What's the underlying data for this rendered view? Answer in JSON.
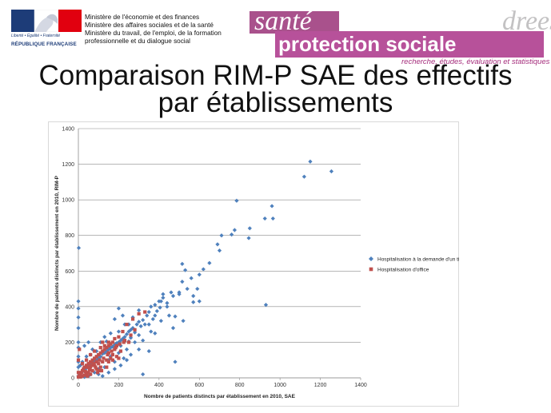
{
  "header": {
    "ministry_logo": {
      "motto": "Liberté • Égalité • Fraternité",
      "name": "RÉPUBLIQUE FRANÇAISE",
      "colors": {
        "blue": "#1d3c78",
        "red": "#e1000f"
      }
    },
    "ministry_lines": [
      "Ministère de l'économie et des finances",
      "Ministère des affaires sociales et de la santé",
      "Ministère du travail, de l'emploi, de la formation",
      "professionnelle et du dialogue social"
    ],
    "brand": {
      "sante": "santé",
      "protection": "protection sociale",
      "drees": "drees",
      "subtitle": "recherche, études, évaluation et statistiques",
      "color": "#b7519a"
    }
  },
  "title": {
    "line1": "Comparaison RIM-P SAE des effectifs",
    "line2": "par établissements"
  },
  "chart_data": {
    "type": "scatter",
    "xlabel": "Nombre de patients distincts par établissement en 2010, SAE",
    "ylabel": "Nombre de patients distincts par établissement en 2010, RIM-P",
    "xlim": [
      0,
      1400
    ],
    "ylim": [
      0,
      1400
    ],
    "xticks": [
      0,
      200,
      400,
      600,
      800,
      1000,
      1200,
      1400
    ],
    "yticks": [
      0,
      200,
      400,
      600,
      800,
      1000,
      1200,
      1400
    ],
    "grid": "horizontal",
    "legend_position": "right",
    "series": [
      {
        "name": "Hospitalisation à la demande d'un tiers",
        "color": "#4f81bd",
        "marker": "diamond",
        "points": [
          [
            1150,
            1215
          ],
          [
            1120,
            1130
          ],
          [
            1255,
            1160
          ],
          [
            785,
            995
          ],
          [
            960,
            965
          ],
          [
            925,
            895
          ],
          [
            965,
            895
          ],
          [
            775,
            830
          ],
          [
            760,
            805
          ],
          [
            850,
            840
          ],
          [
            845,
            785
          ],
          [
            710,
            800
          ],
          [
            690,
            750
          ],
          [
            700,
            715
          ],
          [
            650,
            645
          ],
          [
            515,
            640
          ],
          [
            530,
            605
          ],
          [
            600,
            580
          ],
          [
            560,
            560
          ],
          [
            515,
            540
          ],
          [
            590,
            500
          ],
          [
            570,
            460
          ],
          [
            500,
            470
          ],
          [
            460,
            480
          ],
          [
            470,
            460
          ],
          [
            420,
            450
          ],
          [
            410,
            430
          ],
          [
            440,
            420
          ],
          [
            400,
            430
          ],
          [
            380,
            410
          ],
          [
            360,
            400
          ],
          [
            405,
            395
          ],
          [
            440,
            400
          ],
          [
            930,
            410
          ],
          [
            570,
            425
          ],
          [
            390,
            375
          ],
          [
            350,
            370
          ],
          [
            340,
            350
          ],
          [
            370,
            330
          ],
          [
            320,
            325
          ],
          [
            300,
            315
          ],
          [
            290,
            300
          ],
          [
            310,
            290
          ],
          [
            270,
            280
          ],
          [
            260,
            270
          ],
          [
            280,
            255
          ],
          [
            250,
            260
          ],
          [
            240,
            245
          ],
          [
            230,
            230
          ],
          [
            260,
            225
          ],
          [
            220,
            220
          ],
          [
            210,
            210
          ],
          [
            200,
            200
          ],
          [
            190,
            195
          ],
          [
            180,
            185
          ],
          [
            170,
            175
          ],
          [
            160,
            170
          ],
          [
            150,
            160
          ],
          [
            140,
            150
          ],
          [
            130,
            140
          ],
          [
            120,
            135
          ],
          [
            110,
            120
          ],
          [
            100,
            110
          ],
          [
            90,
            100
          ],
          [
            80,
            95
          ],
          [
            70,
            85
          ],
          [
            60,
            75
          ],
          [
            50,
            65
          ],
          [
            40,
            55
          ],
          [
            30,
            45
          ],
          [
            20,
            35
          ],
          [
            10,
            25
          ],
          [
            5,
            15
          ],
          [
            0,
            10
          ],
          [
            2,
            730
          ],
          [
            0,
            430
          ],
          [
            0,
            390
          ],
          [
            0,
            340
          ],
          [
            0,
            280
          ],
          [
            0,
            200
          ],
          [
            0,
            170
          ],
          [
            0,
            120
          ],
          [
            0,
            90
          ],
          [
            0,
            60
          ],
          [
            30,
            180
          ],
          [
            50,
            200
          ],
          [
            200,
            390
          ],
          [
            220,
            350
          ],
          [
            180,
            330
          ],
          [
            250,
            300
          ],
          [
            330,
            300
          ],
          [
            360,
            260
          ],
          [
            380,
            250
          ],
          [
            320,
            210
          ],
          [
            300,
            160
          ],
          [
            260,
            130
          ],
          [
            225,
            110
          ],
          [
            200,
            140
          ],
          [
            320,
            20
          ],
          [
            480,
            90
          ],
          [
            470,
            280
          ],
          [
            500,
            480
          ],
          [
            350,
            150
          ],
          [
            150,
            100
          ],
          [
            130,
            60
          ],
          [
            100,
            50
          ],
          [
            80,
            30
          ],
          [
            60,
            20
          ],
          [
            120,
            10
          ],
          [
            90,
            150
          ],
          [
            160,
            120
          ],
          [
            180,
            90
          ],
          [
            240,
            160
          ],
          [
            210,
            180
          ],
          [
            140,
            205
          ],
          [
            280,
            200
          ],
          [
            270,
            340
          ],
          [
            300,
            240
          ],
          [
            200,
            260
          ],
          [
            110,
            200
          ],
          [
            70,
            160
          ],
          [
            40,
            120
          ],
          [
            20,
            90
          ],
          [
            10,
            70
          ],
          [
            60,
            130
          ],
          [
            130,
            230
          ],
          [
            230,
            300
          ],
          [
            160,
            250
          ],
          [
            300,
            380
          ],
          [
            410,
            320
          ],
          [
            450,
            350
          ],
          [
            600,
            430
          ],
          [
            620,
            610
          ],
          [
            480,
            345
          ],
          [
            520,
            320
          ],
          [
            540,
            500
          ],
          [
            420,
            470
          ],
          [
            380,
            350
          ],
          [
            350,
            300
          ],
          [
            250,
            205
          ],
          [
            240,
            100
          ],
          [
            180,
            50
          ],
          [
            150,
            30
          ],
          [
            100,
            20
          ],
          [
            50,
            10
          ],
          [
            30,
            5
          ],
          [
            210,
            70
          ]
        ]
      },
      {
        "name": "Hospitalisation d'office",
        "color": "#c0504d",
        "marker": "square",
        "points": [
          [
            330,
            370
          ],
          [
            300,
            360
          ],
          [
            270,
            330
          ],
          [
            240,
            300
          ],
          [
            220,
            260
          ],
          [
            200,
            230
          ],
          [
            180,
            220
          ],
          [
            170,
            200
          ],
          [
            160,
            190
          ],
          [
            150,
            180
          ],
          [
            140,
            170
          ],
          [
            130,
            160
          ],
          [
            120,
            150
          ],
          [
            110,
            140
          ],
          [
            100,
            130
          ],
          [
            90,
            120
          ],
          [
            80,
            110
          ],
          [
            70,
            100
          ],
          [
            60,
            90
          ],
          [
            50,
            80
          ],
          [
            40,
            70
          ],
          [
            30,
            60
          ],
          [
            25,
            50
          ],
          [
            20,
            40
          ],
          [
            15,
            30
          ],
          [
            10,
            20
          ],
          [
            5,
            10
          ],
          [
            0,
            5
          ],
          [
            60,
            60
          ],
          [
            80,
            70
          ],
          [
            100,
            80
          ],
          [
            120,
            90
          ],
          [
            140,
            100
          ],
          [
            160,
            110
          ],
          [
            110,
            60
          ],
          [
            90,
            50
          ],
          [
            70,
            40
          ],
          [
            50,
            30
          ],
          [
            40,
            20
          ],
          [
            30,
            15
          ],
          [
            20,
            10
          ],
          [
            10,
            5
          ],
          [
            130,
            180
          ],
          [
            110,
            170
          ],
          [
            150,
            200
          ],
          [
            190,
            180
          ],
          [
            210,
            150
          ],
          [
            170,
            130
          ],
          [
            230,
            210
          ],
          [
            260,
            240
          ],
          [
            250,
            200
          ],
          [
            280,
            270
          ],
          [
            200,
            110
          ],
          [
            140,
            60
          ],
          [
            100,
            40
          ],
          [
            60,
            20
          ],
          [
            0,
            30
          ],
          [
            0,
            100
          ],
          [
            5,
            160
          ],
          [
            120,
            200
          ],
          [
            80,
            150
          ],
          [
            60,
            130
          ],
          [
            40,
            100
          ],
          [
            20,
            80
          ],
          [
            150,
            140
          ],
          [
            180,
            160
          ],
          [
            90,
            90
          ],
          [
            75,
            80
          ],
          [
            55,
            45
          ],
          [
            35,
            35
          ],
          [
            45,
            60
          ],
          [
            65,
            70
          ],
          [
            85,
            60
          ],
          [
            105,
            100
          ],
          [
            125,
            110
          ],
          [
            145,
            130
          ],
          [
            165,
            150
          ],
          [
            185,
            170
          ],
          [
            205,
            190
          ],
          [
            225,
            200
          ],
          [
            150,
            90
          ],
          [
            170,
            100
          ],
          [
            190,
            120
          ],
          [
            95,
            30
          ],
          [
            115,
            40
          ],
          [
            45,
            10
          ]
        ]
      }
    ]
  }
}
